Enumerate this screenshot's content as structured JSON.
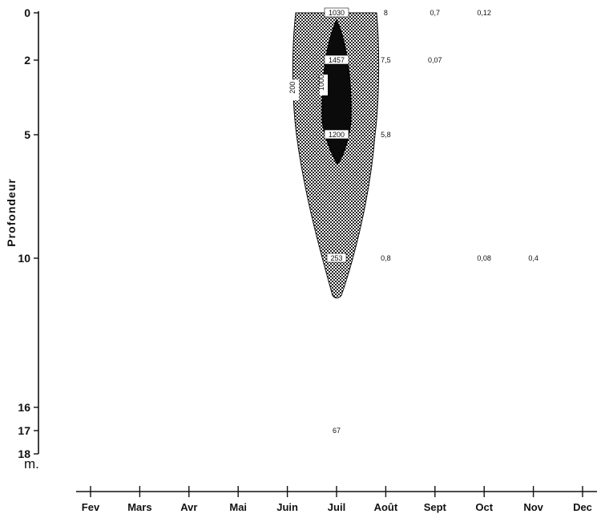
{
  "chart_data": {
    "type": "heatmap",
    "ylabel": "Profondeur",
    "yunit": "m.",
    "y_axis_inverted": true,
    "yticks": [
      0,
      2,
      5,
      10,
      16,
      17,
      18
    ],
    "ylim": [
      0,
      18
    ],
    "months": [
      "Fev",
      "Mars",
      "Avr",
      "Mai",
      "Juin",
      "Juil",
      "Août",
      "Sept",
      "Oct",
      "Nov",
      "Dec"
    ],
    "values": [
      {
        "month": "Juil",
        "depth": 0,
        "value": "1030"
      },
      {
        "month": "Août",
        "depth": 0,
        "value": "8"
      },
      {
        "month": "Sept",
        "depth": 0,
        "value": "0,7"
      },
      {
        "month": "Oct",
        "depth": 0,
        "value": "0,12"
      },
      {
        "month": "Juil",
        "depth": 2,
        "value": "1457"
      },
      {
        "month": "Août",
        "depth": 2,
        "value": "7,5"
      },
      {
        "month": "Sept",
        "depth": 2,
        "value": "0,07"
      },
      {
        "month": "Juil",
        "depth": 5,
        "value": "1200"
      },
      {
        "month": "Août",
        "depth": 5,
        "value": "5,8"
      },
      {
        "month": "Juil",
        "depth": 10,
        "value": "253"
      },
      {
        "month": "Août",
        "depth": 10,
        "value": "0,8"
      },
      {
        "month": "Oct",
        "depth": 10,
        "value": "0,08"
      },
      {
        "month": "Nov",
        "depth": 10,
        "value": "0,4"
      },
      {
        "month": "Juil",
        "depth": 17,
        "value": "67"
      }
    ],
    "isolines": [
      {
        "label": "200",
        "fill": "stippled"
      },
      {
        "label": "1000",
        "fill": "black"
      }
    ]
  }
}
